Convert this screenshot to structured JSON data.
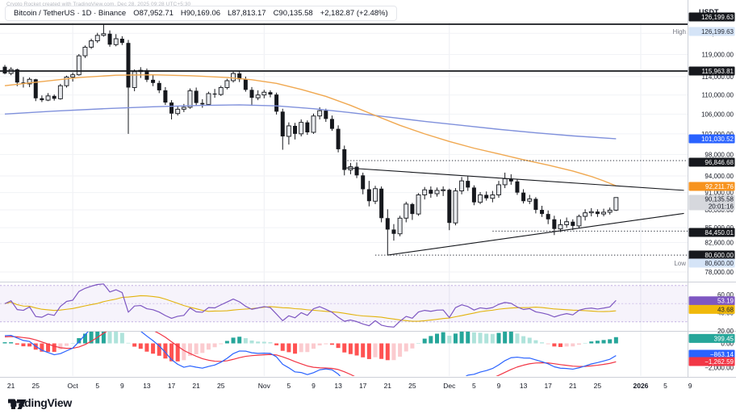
{
  "watermark": "Crypto Rocket created with TradingView.com, Dec 28, 2025 09:28 UTC+5:30",
  "header": {
    "title": "Bitcoin / TetherUS · 1D · Binance",
    "o": "O87,952.71",
    "h": "H90,169.06",
    "l": "L87,813.17",
    "c": "C90,135.58",
    "change": "+2,182.87 (+2.48%)"
  },
  "logo": {
    "text": "TradingView"
  },
  "price_axis": {
    "currency": "USDT",
    "high_word": "High",
    "low_word": "Low",
    "ticks": [
      {
        "price": 124000,
        "label": "124,000.00"
      },
      {
        "price": 119000,
        "label": "119,000.00"
      },
      {
        "price": 114000,
        "label": "114,000.00"
      },
      {
        "price": 110000,
        "label": "110,000.00"
      },
      {
        "price": 106000,
        "label": "106,000.00"
      },
      {
        "price": 102000,
        "label": "102,000.00"
      },
      {
        "price": 98000,
        "label": "98,000.00"
      },
      {
        "price": 94000,
        "label": "94,000.00"
      },
      {
        "price": 91000,
        "label": "91,000.00"
      },
      {
        "price": 88000,
        "label": "88,000.00"
      },
      {
        "price": 85000,
        "label": "85,000.00"
      },
      {
        "price": 82600,
        "label": "82,600.00"
      },
      {
        "price": 78000,
        "label": "78,000.00"
      }
    ],
    "labels": [
      {
        "text": "126,199.63",
        "type": "black"
      },
      {
        "text": "126,199.63",
        "type": "hl"
      },
      {
        "text": "115,963.81",
        "type": "black"
      },
      {
        "text": "101,030.52",
        "type": "blue"
      },
      {
        "text": "96,846.68",
        "type": "black"
      },
      {
        "text": "92,211.76",
        "type": "orange"
      },
      {
        "text": "90,135.58",
        "type": "gray",
        "text2": "20:01:16"
      },
      {
        "text": "84,450.01",
        "type": "black"
      },
      {
        "text": "80,600.00",
        "type": "black"
      },
      {
        "text": "80,600.00",
        "type": "hl"
      }
    ]
  },
  "rsi_pane": {
    "ticks": [
      {
        "value": 60,
        "label": "60.00"
      },
      {
        "value": 40,
        "label": "40.00"
      },
      {
        "value": 20,
        "label": "20.00"
      }
    ],
    "labels": [
      {
        "text": "53.19",
        "type": "purple"
      },
      {
        "text": "43.68",
        "type": "yellow"
      }
    ],
    "levels": [
      70,
      50,
      30
    ]
  },
  "macd_pane": {
    "ticks": [
      {
        "value": 0,
        "label": "0.00"
      },
      {
        "value": -2000,
        "label": "−2,000.00"
      }
    ],
    "labels": [
      {
        "text": "399.45",
        "type": "teal"
      },
      {
        "text": "−863.14",
        "type": "blue"
      },
      {
        "text": "−1,262.59",
        "type": "red"
      }
    ]
  },
  "time_axis": {
    "ticks": [
      {
        "label": "21",
        "i": 1
      },
      {
        "label": "25",
        "i": 5
      },
      {
        "label": "Oct",
        "i": 11
      },
      {
        "label": "5",
        "i": 15
      },
      {
        "label": "9",
        "i": 19
      },
      {
        "label": "13",
        "i": 23
      },
      {
        "label": "17",
        "i": 27
      },
      {
        "label": "21",
        "i": 31
      },
      {
        "label": "25",
        "i": 35
      },
      {
        "label": "Nov",
        "i": 42
      },
      {
        "label": "5",
        "i": 46
      },
      {
        "label": "9",
        "i": 50
      },
      {
        "label": "13",
        "i": 54
      },
      {
        "label": "17",
        "i": 58
      },
      {
        "label": "21",
        "i": 62
      },
      {
        "label": "25",
        "i": 66
      },
      {
        "label": "Dec",
        "i": 72
      },
      {
        "label": "5",
        "i": 76
      },
      {
        "label": "9",
        "i": 80
      },
      {
        "label": "13",
        "i": 84
      },
      {
        "label": "17",
        "i": 88
      },
      {
        "label": "21",
        "i": 92
      },
      {
        "label": "25",
        "i": 96
      },
      {
        "label": "2026",
        "i": 103,
        "bold": true
      },
      {
        "label": "5",
        "i": 107
      },
      {
        "label": "9",
        "i": 111
      }
    ],
    "month_grid_i": [
      11,
      42,
      72,
      103
    ]
  },
  "colors": {
    "up_body": "#E8EAED",
    "down_body": "#16181D",
    "candle_line": "#16181D",
    "ma_blue": "#8091DC",
    "ma_orange": "#F0A850",
    "rsi_purple": "#7E57C2",
    "rsi_yellow": "#E2B30B",
    "macd_blue": "#2962FF",
    "macd_signal": "#F23645",
    "hist_up_strong": "#26A69A",
    "hist_up_weak": "#AFE3DB",
    "hist_dn_strong": "#FF5252",
    "hist_dn_weak": "#FBCBCF",
    "label_black_bg": "#16181D",
    "label_blue_bg": "#2962FF",
    "label_orange_bg": "#F7931E",
    "label_gray_bg": "#D6D8DD",
    "label_purple_bg": "#7E57C2",
    "label_yellow_bg": "#F0B90B",
    "label_teal_bg": "#26A69A",
    "label_red_bg": "#F23645",
    "label_hl_bg": "#D5E4F7",
    "grid": "#F1F2F6",
    "separator": "#CDD0D8",
    "axis_text": "#131722",
    "hl_word": "#787B86"
  },
  "chart_data": {
    "type": "candlestick",
    "symbol": "BTCUSDT",
    "interval": "1D",
    "scale": "log",
    "high_line": 126199.63,
    "mid_line": 115963.81,
    "dotted_lines": [
      {
        "price": 96846.68,
        "from_i": 55
      },
      {
        "price": 84450.01,
        "from_i": 79
      },
      {
        "price": 80600.0,
        "from_i": 60
      }
    ],
    "trendlines": [
      {
        "from": [
          55,
          95500
        ],
        "to": [
          110,
          91400
        ]
      },
      {
        "from": [
          62,
          80600
        ],
        "to": [
          110,
          87400
        ]
      }
    ],
    "candles": [
      [
        116200,
        116600,
        114500,
        114700
      ],
      [
        114700,
        116100,
        114300,
        115600
      ],
      [
        115600,
        115800,
        111900,
        112700
      ],
      [
        112700,
        113900,
        111600,
        112400
      ],
      [
        112400,
        113800,
        111700,
        113400
      ],
      [
        113400,
        113500,
        108700,
        109300
      ],
      [
        109300,
        109900,
        108500,
        108900
      ],
      [
        108900,
        110400,
        108700,
        109800
      ],
      [
        109800,
        110100,
        108800,
        109200
      ],
      [
        109200,
        112400,
        109000,
        112000
      ],
      [
        112000,
        114200,
        111600,
        113900
      ],
      [
        113900,
        114900,
        112900,
        114400
      ],
      [
        114400,
        119100,
        114200,
        118700
      ],
      [
        118700,
        121100,
        118200,
        120700
      ],
      [
        120700,
        122700,
        120300,
        122200
      ],
      [
        122200,
        124100,
        121700,
        123500
      ],
      [
        123500,
        126199.63,
        123200,
        123900
      ],
      [
        123900,
        124700,
        120800,
        121300
      ],
      [
        121300,
        123800,
        120900,
        122700
      ],
      [
        122700,
        123300,
        121200,
        121700
      ],
      [
        121700,
        122400,
        102000,
        111600
      ],
      [
        111600,
        115600,
        110800,
        115100
      ],
      [
        115100,
        116100,
        113700,
        115400
      ],
      [
        115400,
        115800,
        112800,
        113300
      ],
      [
        113300,
        114300,
        111900,
        112600
      ],
      [
        112600,
        113100,
        110400,
        111000
      ],
      [
        111000,
        111700,
        107900,
        108400
      ],
      [
        108400,
        108900,
        104900,
        106100
      ],
      [
        106100,
        107600,
        105700,
        107000
      ],
      [
        107000,
        108100,
        106400,
        107400
      ],
      [
        107400,
        111400,
        107100,
        110900
      ],
      [
        110900,
        111600,
        107800,
        108300
      ],
      [
        108300,
        109100,
        107300,
        108000
      ],
      [
        108000,
        110700,
        107800,
        110300
      ],
      [
        110300,
        111300,
        109400,
        110100
      ],
      [
        110100,
        112000,
        109800,
        111600
      ],
      [
        111600,
        113500,
        111200,
        113100
      ],
      [
        113100,
        115100,
        112700,
        114700
      ],
      [
        114700,
        115200,
        112800,
        113400
      ],
      [
        113400,
        114000,
        110700,
        111100
      ],
      [
        111100,
        111700,
        107700,
        109400
      ],
      [
        109400,
        111000,
        108900,
        110000
      ],
      [
        110000,
        111100,
        109300,
        110600
      ],
      [
        110600,
        111000,
        109500,
        110100
      ],
      [
        110100,
        110500,
        105900,
        106500
      ],
      [
        106500,
        107100,
        98900,
        101500
      ],
      [
        101500,
        104300,
        99900,
        103600
      ],
      [
        103600,
        104200,
        100900,
        102000
      ],
      [
        102000,
        104900,
        101500,
        104300
      ],
      [
        104300,
        104700,
        101800,
        102300
      ],
      [
        102300,
        106100,
        102000,
        105600
      ],
      [
        105600,
        107400,
        104900,
        106700
      ],
      [
        106700,
        107100,
        104400,
        105000
      ],
      [
        105000,
        105700,
        102600,
        103000
      ],
      [
        103000,
        103700,
        98400,
        99000
      ],
      [
        99000,
        99700,
        94100,
        95100
      ],
      [
        95100,
        96400,
        94300,
        95700
      ],
      [
        95700,
        96500,
        93600,
        94100
      ],
      [
        94100,
        94600,
        90700,
        91600
      ],
      [
        91600,
        93100,
        88600,
        89500
      ],
      [
        89500,
        92200,
        89000,
        91700
      ],
      [
        91700,
        92100,
        85900,
        86600
      ],
      [
        86600,
        88100,
        80600,
        84700
      ],
      [
        84700,
        85600,
        82900,
        84000
      ],
      [
        84000,
        87000,
        83600,
        86600
      ],
      [
        86600,
        89400,
        85900,
        89000
      ],
      [
        89000,
        89200,
        86300,
        87300
      ],
      [
        87300,
        90900,
        87000,
        90600
      ],
      [
        90600,
        92000,
        89800,
        91500
      ],
      [
        91500,
        92100,
        90100,
        90800
      ],
      [
        90800,
        91900,
        90300,
        91400
      ],
      [
        91400,
        92100,
        90400,
        91500
      ],
      [
        91500,
        91700,
        84600,
        85800
      ],
      [
        85800,
        91800,
        85400,
        91300
      ],
      [
        91300,
        93800,
        90700,
        93100
      ],
      [
        93100,
        94000,
        91300,
        91900
      ],
      [
        91900,
        92300,
        88800,
        89300
      ],
      [
        89300,
        91100,
        89000,
        90600
      ],
      [
        90600,
        91200,
        89600,
        90000
      ],
      [
        90000,
        91300,
        89300,
        90600
      ],
      [
        90600,
        93100,
        90100,
        92400
      ],
      [
        92400,
        94600,
        91800,
        93500
      ],
      [
        93500,
        94300,
        92400,
        93000
      ],
      [
        93000,
        93400,
        90600,
        91000
      ],
      [
        91000,
        91600,
        89100,
        89500
      ],
      [
        89500,
        90600,
        89000,
        89900
      ],
      [
        89900,
        90200,
        87400,
        88000
      ],
      [
        88000,
        88700,
        86800,
        87300
      ],
      [
        87300,
        87900,
        85600,
        86400
      ],
      [
        86400,
        87000,
        83800,
        84800
      ],
      [
        84800,
        86400,
        84300,
        85500
      ],
      [
        85500,
        86700,
        85000,
        86000
      ],
      [
        86000,
        86400,
        84600,
        85300
      ],
      [
        85300,
        87200,
        84900,
        86900
      ],
      [
        86900,
        88100,
        86200,
        87500
      ],
      [
        87500,
        88300,
        86900,
        87700
      ],
      [
        87700,
        88100,
        86800,
        87300
      ],
      [
        87300,
        88200,
        86900,
        87600
      ],
      [
        87600,
        88400,
        87200,
        87952.71
      ],
      [
        87952.71,
        90169.06,
        87813.17,
        90135.58
      ]
    ],
    "ma_orange": [
      [
        0,
        112000
      ],
      [
        6,
        112900
      ],
      [
        12,
        113800
      ],
      [
        18,
        114300
      ],
      [
        24,
        114400
      ],
      [
        30,
        114200
      ],
      [
        36,
        113800
      ],
      [
        40,
        113300
      ],
      [
        44,
        112500
      ],
      [
        48,
        111200
      ],
      [
        52,
        109700
      ],
      [
        56,
        107800
      ],
      [
        60,
        105700
      ],
      [
        64,
        103700
      ],
      [
        68,
        102000
      ],
      [
        72,
        100500
      ],
      [
        76,
        99200
      ],
      [
        80,
        98100
      ],
      [
        84,
        97000
      ],
      [
        88,
        96000
      ],
      [
        92,
        94900
      ],
      [
        95,
        93900
      ],
      [
        97,
        93100
      ],
      [
        99,
        92211.76
      ]
    ],
    "ma_blue": [
      [
        0,
        106000
      ],
      [
        8,
        106600
      ],
      [
        16,
        107100
      ],
      [
        24,
        107500
      ],
      [
        32,
        107800
      ],
      [
        38,
        107900
      ],
      [
        44,
        107700
      ],
      [
        50,
        107100
      ],
      [
        56,
        106300
      ],
      [
        62,
        105400
      ],
      [
        68,
        104500
      ],
      [
        74,
        103700
      ],
      [
        80,
        102900
      ],
      [
        86,
        102200
      ],
      [
        92,
        101600
      ],
      [
        99,
        101030.52
      ]
    ]
  }
}
